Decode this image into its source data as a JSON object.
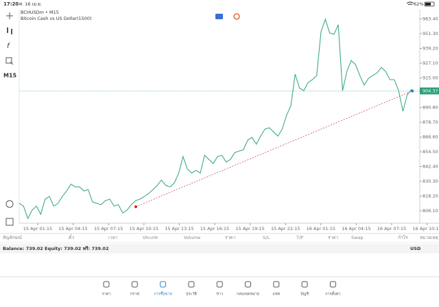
{
  "status_bar": {
    "time": "17:20",
    "date": "ศ. 16 เม.ย.",
    "battery": "62%"
  },
  "chart": {
    "type": "line",
    "symbol": "BCHUSDm • M15",
    "description": "Bitcoin Cash vs US Dollar(1500)",
    "timeframe": "M15",
    "color": "#3daa7f",
    "values": [
      812.3,
      810.0,
      799.9,
      806.7,
      810.0,
      803.3,
      815.7,
      817.9,
      810.0,
      812.3,
      817.9,
      822.4,
      828.0,
      825.8,
      825.8,
      822.4,
      823.5,
      813.4,
      812.3,
      811.2,
      814.5,
      815.7,
      810.0,
      811.2,
      804.4,
      806.7,
      811.2,
      814.5,
      815.7,
      817.9,
      820.2,
      823.5,
      826.9,
      831.4,
      826.9,
      825.8,
      829.2,
      837.1,
      850.6,
      840.4,
      837.1,
      839.3,
      837.1,
      851.7,
      848.3,
      844.9,
      850.6,
      851.7,
      846.1,
      848.3,
      853.9,
      855.1,
      856.2,
      864.1,
      866.3,
      860.7,
      867.4,
      873.1,
      874.2,
      870.8,
      867.4,
      873.1,
      884.3,
      892.2,
      918.1,
      906.8,
      904.6,
      911.3,
      913.6,
      917.0,
      953.0,
      963.1,
      951.9,
      950.7,
      958.6,
      904.6,
      920.3,
      929.3,
      926.0,
      917.0,
      909.1,
      914.7,
      917.0,
      919.2,
      923.7,
      920.3,
      913.6,
      913.6,
      904.6,
      887.7,
      901.2,
      905.7
    ],
    "trendline": [
      809.5,
      904.37
    ],
    "current_price": {
      "value": 904.37,
      "label": "904.37"
    },
    "ylim": [
      796.0,
      971.0
    ],
    "yticks": [
      {
        "value": 963.4,
        "label": "963.40"
      },
      {
        "value": 951.3,
        "label": "951.30"
      },
      {
        "value": 939.2,
        "label": "939.20"
      },
      {
        "value": 927.1,
        "label": "927.10"
      },
      {
        "value": 915.0,
        "label": "915.00"
      },
      {
        "value": 890.8,
        "label": "890.80"
      },
      {
        "value": 878.7,
        "label": "878.70"
      },
      {
        "value": 866.6,
        "label": "866.60"
      },
      {
        "value": 854.5,
        "label": "854.50"
      },
      {
        "value": 842.4,
        "label": "842.40"
      },
      {
        "value": 830.3,
        "label": "830.30"
      },
      {
        "value": 818.2,
        "label": "818.20"
      },
      {
        "value": 806.1,
        "label": "806.10"
      }
    ],
    "xticks": [
      "15 Apr 01:15",
      "15 Apr 04:15",
      "15 Apr 07:15",
      "15 Apr 10:15",
      "15 Apr 13:15",
      "15 Apr 16:15",
      "15 Apr 19:15",
      "15 Apr 22:15",
      "16 Apr 01:15",
      "16 Apr 04:15",
      "16 Apr 07:15",
      "16 Apr 10:15"
    ]
  },
  "table": {
    "headers": [
      "สัญลักษณ์",
      "ตั๋ว",
      "เวลา",
      "ประเภท",
      "Volume",
      "ราคา",
      "S/L",
      "T/P",
      "ราคา",
      "Swap",
      "กำไร",
      "หมายเหตุ"
    ],
    "balance": "Balance: 739.02 Equity: 739.02 ฟรี: 739.02",
    "currency": "USD"
  },
  "tabs": [
    "ราคา",
    "กราฟ",
    "การซื้อขาย",
    "ประวัติ",
    "ข่าว",
    "กล่องจดหมาย",
    "แชท",
    "บัญชี",
    "การตั้งค่า"
  ],
  "active_tab": 2
}
